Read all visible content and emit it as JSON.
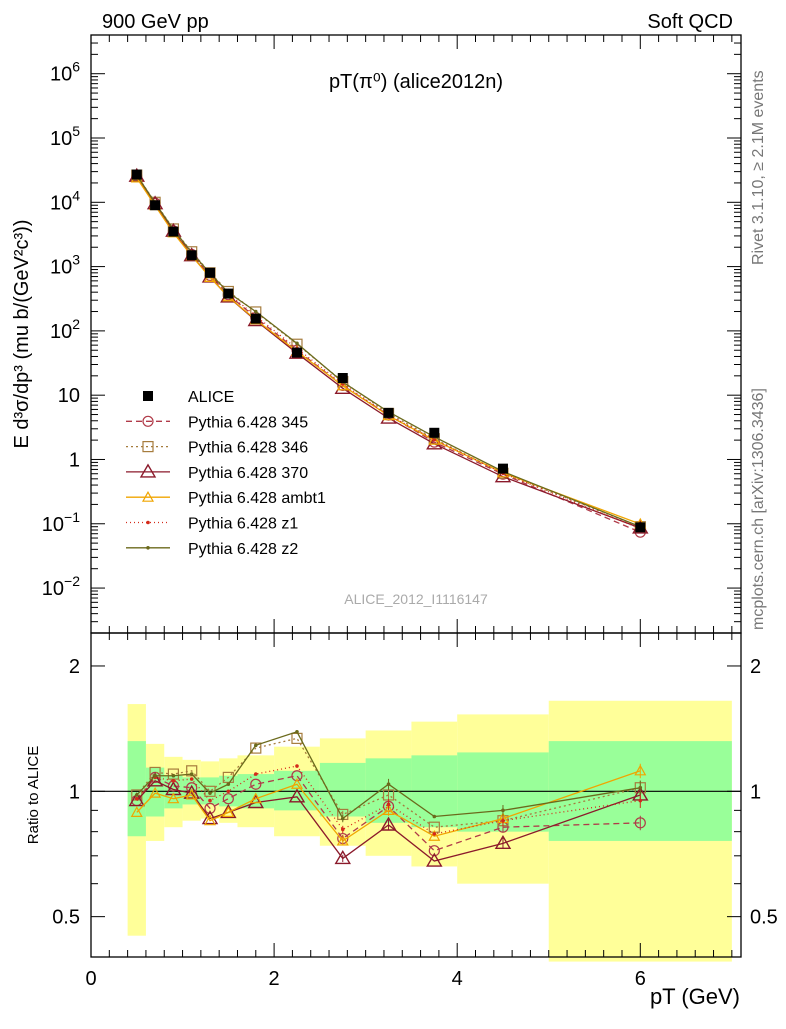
{
  "header": {
    "left": "900 GeV pp",
    "right": "Soft QCD"
  },
  "side_text": {
    "rivet": "Rivet 3.1.10, ≥ 2.1M events",
    "mcplots": "mcplots.cern.ch [arXiv:1306.3436]"
  },
  "watermark": "ALICE_2012_I1116147",
  "chart_data": [
    {
      "type": "scatter",
      "title": "pT(π⁰) (alice2012n)",
      "ylabel": "E d³σ/dp³ (mu b/(GeV²c³))",
      "xlabel": "",
      "yscale": "log",
      "xlim": [
        0,
        7.1
      ],
      "ylim": [
        0.002,
        4000000
      ],
      "legend_position": "center-left",
      "x_ticks": [
        {
          "value": 0,
          "label": ""
        },
        {
          "value": 2,
          "label": ""
        },
        {
          "value": 4,
          "label": ""
        },
        {
          "value": 6,
          "label": ""
        }
      ],
      "y_ticks": [
        {
          "value": 0.01,
          "base": "10",
          "exp": "−2"
        },
        {
          "value": 0.1,
          "base": "10",
          "exp": "−1"
        },
        {
          "value": 1,
          "base": "1",
          "exp": ""
        },
        {
          "value": 10,
          "base": "10",
          "exp": ""
        },
        {
          "value": 100,
          "base": "10",
          "exp": "2"
        },
        {
          "value": 1000,
          "base": "10",
          "exp": "3"
        },
        {
          "value": 10000,
          "base": "10",
          "exp": "4"
        },
        {
          "value": 100000,
          "base": "10",
          "exp": "5"
        },
        {
          "value": 1000000,
          "base": "10",
          "exp": "6"
        }
      ],
      "data": {
        "name": "ALICE",
        "color": "#000000",
        "x": [
          0.5,
          0.7,
          0.9,
          1.1,
          1.3,
          1.5,
          1.8,
          2.25,
          2.75,
          3.25,
          3.75,
          4.5,
          6.0
        ],
        "y": [
          27000,
          9000,
          3500,
          1500,
          800,
          380,
          155,
          46,
          18.5,
          5.3,
          2.6,
          0.72,
          0.088
        ]
      },
      "series": [
        {
          "name": "Pythia 6.428 345",
          "color": "#b03a48",
          "marker": "circle",
          "dash": "6,4",
          "y": [
            25500,
            9700,
            3600,
            1540,
            730,
            365,
            161,
            50,
            14.2,
            4.9,
            1.86,
            0.59,
            0.074
          ]
        },
        {
          "name": "Pythia 6.428 346",
          "color": "#a67c3d",
          "marker": "square",
          "dash": "2,3",
          "y": [
            26500,
            10000,
            3850,
            1700,
            800,
            410,
            197,
            62,
            16.3,
            5.2,
            2.1,
            0.61,
            0.09
          ]
        },
        {
          "name": "Pythia 6.428 370",
          "color": "#8b1a2b",
          "marker": "triangle",
          "dash": "",
          "y": [
            25500,
            9500,
            3550,
            1480,
            690,
            338,
            145,
            45,
            12.8,
            4.4,
            1.75,
            0.54,
            0.086
          ]
        },
        {
          "name": "Pythia 6.428 ambt1",
          "color": "#f0a500",
          "marker": "triangle-small",
          "dash": "",
          "y": [
            24000,
            8900,
            3350,
            1470,
            680,
            340,
            149,
            48,
            14.0,
            4.8,
            2.0,
            0.62,
            0.099
          ]
        },
        {
          "name": "Pythia 6.428 z1",
          "color": "#d42a1a",
          "marker": "dot",
          "dash": "1,3",
          "y": [
            26000,
            9700,
            3700,
            1600,
            760,
            380,
            170,
            53,
            15.0,
            4.9,
            2.05,
            0.61,
            0.084
          ]
        },
        {
          "name": "Pythia 6.428 z2",
          "color": "#6b6a1c",
          "marker": "dot",
          "dash": "",
          "y": [
            26500,
            9800,
            3800,
            1650,
            790,
            395,
            200,
            64,
            16.0,
            5.5,
            2.25,
            0.65,
            0.09
          ]
        }
      ]
    },
    {
      "type": "scatter",
      "title": "",
      "ylabel": "Ratio to ALICE",
      "xlabel": "p_T (GeV)",
      "yscale": "log",
      "xlim": [
        0,
        7.1
      ],
      "ylim": [
        0.4,
        2.4
      ],
      "reference_line": 1,
      "x_ticks": [
        {
          "value": 0,
          "label": "0"
        },
        {
          "value": 2,
          "label": "2"
        },
        {
          "value": 4,
          "label": "4"
        },
        {
          "value": 6,
          "label": "6"
        }
      ],
      "y_ticks": [
        {
          "value": 0.5,
          "label": "0.5"
        },
        {
          "value": 1,
          "label": "1"
        },
        {
          "value": 2,
          "label": "2"
        }
      ],
      "bands": {
        "edges": [
          0.4,
          0.6,
          0.8,
          1.0,
          1.2,
          1.4,
          1.6,
          2.0,
          2.5,
          3.0,
          3.5,
          4.0,
          5.0,
          7.0
        ],
        "stat": [
          [
            0.78,
            1.32
          ],
          [
            0.87,
            1.14
          ],
          [
            0.91,
            1.09
          ],
          [
            0.93,
            1.08
          ],
          [
            0.93,
            1.08
          ],
          [
            0.92,
            1.09
          ],
          [
            0.91,
            1.1
          ],
          [
            0.9,
            1.12
          ],
          [
            0.87,
            1.17
          ],
          [
            0.84,
            1.2
          ],
          [
            0.82,
            1.22
          ],
          [
            0.8,
            1.24
          ],
          [
            0.76,
            1.32
          ]
        ],
        "syst": [
          [
            0.45,
            1.62
          ],
          [
            0.76,
            1.3
          ],
          [
            0.82,
            1.21
          ],
          [
            0.85,
            1.19
          ],
          [
            0.86,
            1.18
          ],
          [
            0.84,
            1.2
          ],
          [
            0.82,
            1.22
          ],
          [
            0.78,
            1.28
          ],
          [
            0.74,
            1.34
          ],
          [
            0.7,
            1.4
          ],
          [
            0.66,
            1.47
          ],
          [
            0.6,
            1.53
          ],
          [
            0.39,
            1.65
          ]
        ]
      },
      "colors": {
        "stat": "#99ff99",
        "syst": "#ffff99"
      },
      "series": [
        {
          "name": "Pythia 6.428 345",
          "y": [
            0.95,
            1.08,
            1.03,
            1.02,
            0.91,
            0.96,
            1.04,
            1.09,
            0.77,
            0.92,
            0.72,
            0.82,
            0.84
          ]
        },
        {
          "name": "Pythia 6.428 346",
          "y": [
            0.98,
            1.11,
            1.1,
            1.12,
            1.0,
            1.08,
            1.27,
            1.34,
            0.88,
            0.98,
            0.82,
            0.85,
            1.02
          ]
        },
        {
          "name": "Pythia 6.428 370",
          "y": [
            0.95,
            1.06,
            1.01,
            0.99,
            0.86,
            0.89,
            0.94,
            0.97,
            0.69,
            0.83,
            0.68,
            0.75,
            0.98
          ]
        },
        {
          "name": "Pythia 6.428 ambt1",
          "y": [
            0.89,
            0.99,
            0.96,
            0.98,
            0.85,
            0.89,
            0.96,
            1.04,
            0.76,
            0.9,
            0.78,
            0.86,
            1.12
          ]
        },
        {
          "name": "Pythia 6.428 z1",
          "y": [
            0.96,
            1.08,
            1.06,
            1.07,
            0.95,
            1.0,
            1.1,
            1.15,
            0.81,
            0.93,
            0.79,
            0.85,
            0.95
          ]
        },
        {
          "name": "Pythia 6.428 z2",
          "y": [
            0.98,
            1.09,
            1.09,
            1.1,
            0.99,
            1.04,
            1.29,
            1.39,
            0.86,
            1.04,
            0.87,
            0.9,
            1.02
          ]
        }
      ],
      "errors": {
        "x": [
          2.75,
          3.25,
          4.5,
          6.0
        ],
        "err": [
          0.02,
          0.03,
          0.03,
          0.04
        ]
      }
    }
  ]
}
